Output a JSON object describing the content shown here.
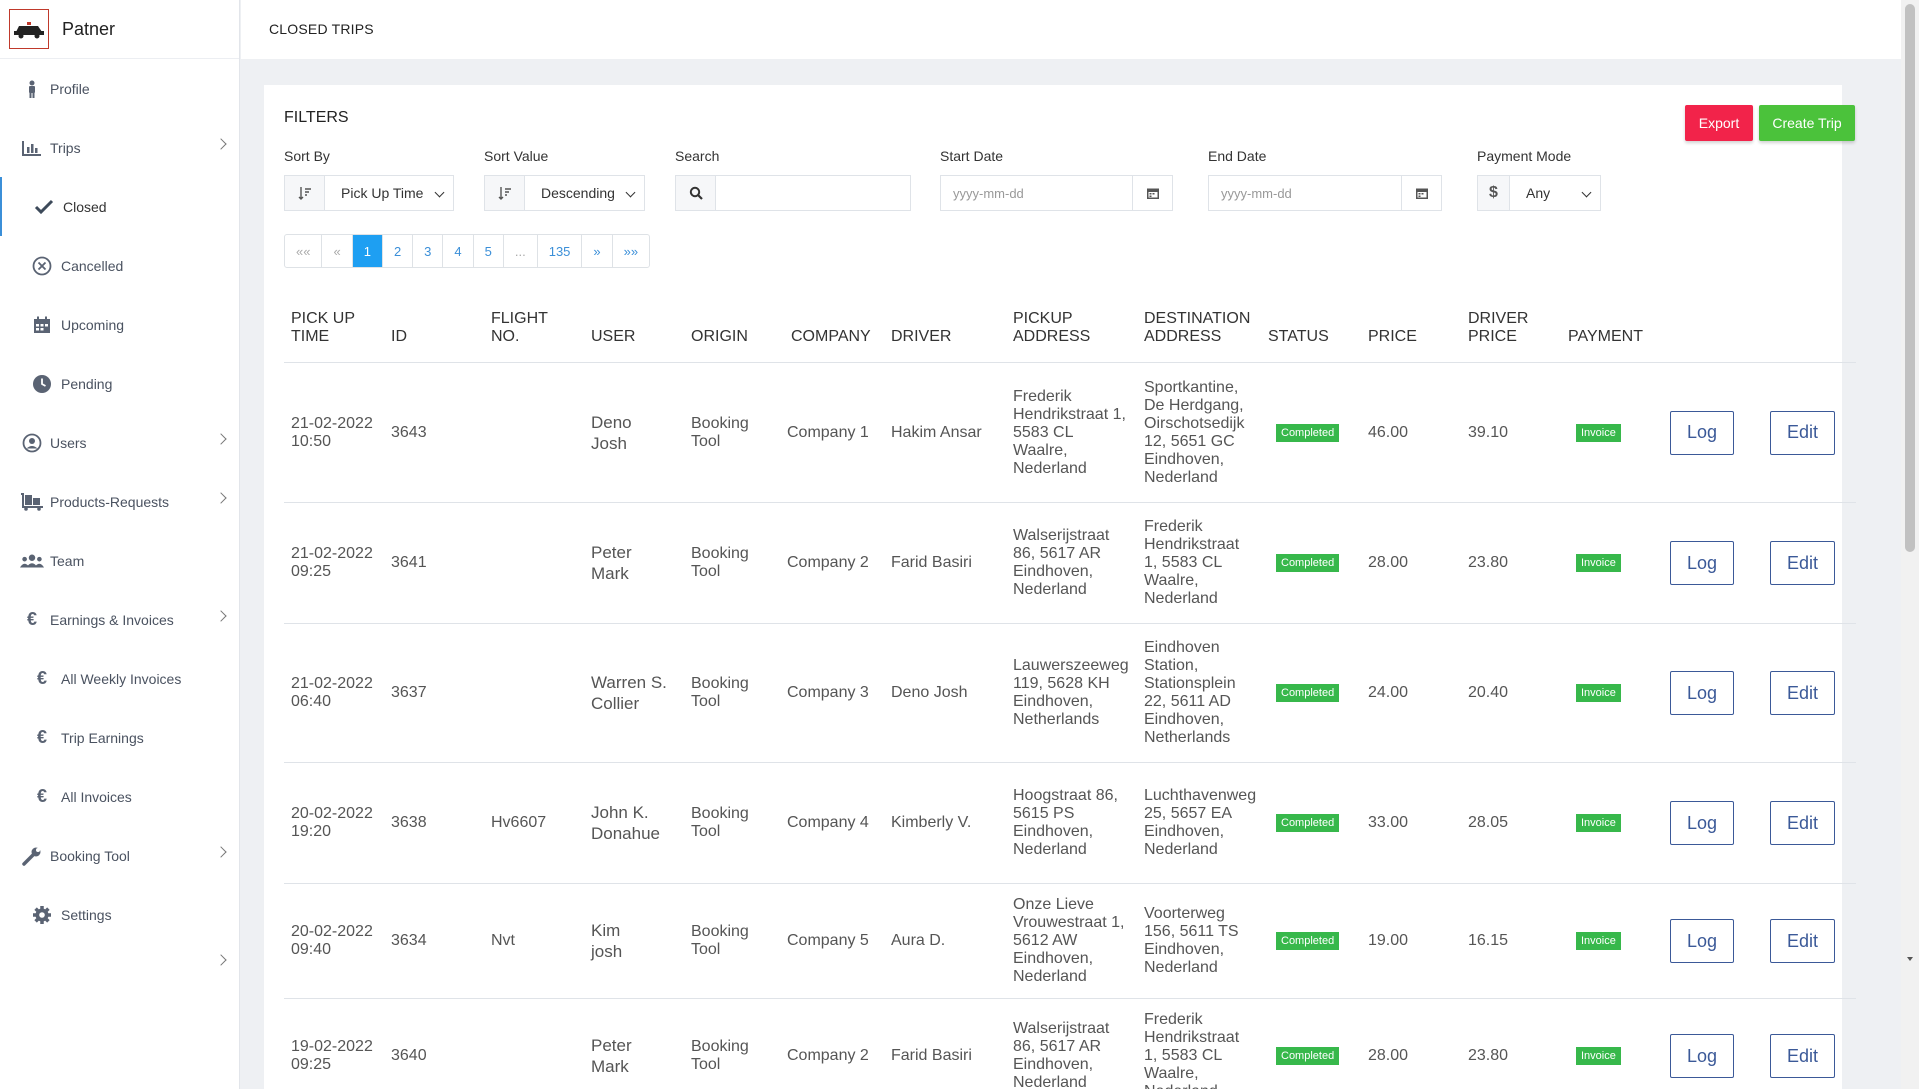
{
  "brand": {
    "name": "Patner"
  },
  "header": {
    "title": "CLOSED TRIPS"
  },
  "sidebar": {
    "items": [
      {
        "label": "Profile",
        "icon": "person-icon"
      },
      {
        "label": "Trips",
        "icon": "bar-chart-icon"
      },
      {
        "label": "Closed",
        "icon": "check-icon"
      },
      {
        "label": "Cancelled",
        "icon": "x-circle-icon"
      },
      {
        "label": "Upcoming",
        "icon": "calendar-icon"
      },
      {
        "label": "Pending",
        "icon": "clock-icon"
      },
      {
        "label": "Users",
        "icon": "user-circle-icon"
      },
      {
        "label": "Products-Requests",
        "icon": "dolly-icon"
      },
      {
        "label": "Team",
        "icon": "users-icon"
      },
      {
        "label": "Earnings & Invoices",
        "icon": "euro-icon"
      },
      {
        "label": "All Weekly Invoices",
        "icon": "euro-icon"
      },
      {
        "label": "Trip Earnings",
        "icon": "euro-icon"
      },
      {
        "label": "All Invoices",
        "icon": "euro-icon"
      },
      {
        "label": "Booking Tool",
        "icon": "wrench-icon"
      },
      {
        "label": "Settings",
        "icon": "gear-icon"
      }
    ]
  },
  "filters": {
    "title": "FILTERS",
    "export_label": "Export",
    "create_label": "Create Trip",
    "sort_by_label": "Sort By",
    "sort_by_value": "Pick Up Time",
    "sort_value_label": "Sort Value",
    "sort_value_value": "Descending",
    "search_label": "Search",
    "search_value": "",
    "start_date_label": "Start Date",
    "start_date_placeholder": "yyyy-mm-dd",
    "end_date_label": "End Date",
    "end_date_placeholder": "yyyy-mm-dd",
    "payment_mode_label": "Payment Mode",
    "payment_mode_value": "Any",
    "currency_symbol": "$"
  },
  "pagination": [
    "«« ",
    "«",
    "1",
    "2",
    "3",
    "4",
    "5",
    "...",
    "135",
    "»",
    "»»"
  ],
  "table": {
    "headers": {
      "pickup_time": [
        "PICK UP",
        "TIME"
      ],
      "id": "ID",
      "flight": [
        "FLIGHT",
        "NO."
      ],
      "user": "USER",
      "origin": "ORIGIN",
      "company": "COMPANY",
      "driver": "DRIVER",
      "pickup_address": [
        "PICKUP",
        "ADDRESS"
      ],
      "destination_address": [
        "DESTINATION",
        "ADDRESS"
      ],
      "status": "STATUS",
      "price": "PRICE",
      "driver_price": [
        "DRIVER",
        "PRICE"
      ],
      "payment": "PAYMENT"
    },
    "log_label": "Log",
    "edit_label": "Edit",
    "rows": [
      {
        "time": [
          "21-02-2022",
          "10:50"
        ],
        "id": "3643",
        "flight": "",
        "user": [
          "Deno",
          "Josh"
        ],
        "origin": [
          "Booking",
          "Tool"
        ],
        "company": "Company 1",
        "driver": "Hakim Ansar",
        "pickup": [
          "Frederik",
          "Hendrikstraat 1,",
          "5583 CL",
          "Waalre,",
          "Nederland"
        ],
        "destination": [
          "Sportkantine,",
          "De Herdgang,",
          "Oirschotsedijk",
          "12, 5651 GC",
          "Eindhoven,",
          "Nederland"
        ],
        "status": "Completed",
        "price": "46.00",
        "driver_price": "39.10",
        "payment": "Invoice"
      },
      {
        "time": [
          "21-02-2022",
          "09:25"
        ],
        "id": "3641",
        "flight": "",
        "user": [
          "Peter",
          "Mark"
        ],
        "origin": [
          "Booking",
          "Tool"
        ],
        "company": "Company 2",
        "driver": "Farid Basiri",
        "pickup": [
          "Walserijstraat",
          "86, 5617 AR",
          "Eindhoven,",
          "Nederland"
        ],
        "destination": [
          "Frederik",
          "Hendrikstraat",
          "1, 5583 CL",
          "Waalre,",
          "Nederland"
        ],
        "status": "Completed",
        "price": "28.00",
        "driver_price": "23.80",
        "payment": "Invoice"
      },
      {
        "time": [
          "21-02-2022",
          "06:40"
        ],
        "id": "3637",
        "flight": "",
        "user": [
          "Warren S.",
          "Collier"
        ],
        "origin": [
          "Booking",
          "Tool"
        ],
        "company": "Company 3",
        "driver": "Deno Josh",
        "pickup": [
          "Lauwerszeeweg",
          "119, 5628 KH",
          "Eindhoven,",
          "Netherlands"
        ],
        "destination": [
          "Eindhoven",
          "Station,",
          "Stationsplein",
          "22, 5611 AD",
          "Eindhoven,",
          "Netherlands"
        ],
        "status": "Completed",
        "price": "24.00",
        "driver_price": "20.40",
        "payment": "Invoice"
      },
      {
        "time": [
          "20-02-2022",
          "19:20"
        ],
        "id": "3638",
        "flight": "Hv6607",
        "user": [
          "John K.",
          "Donahue"
        ],
        "origin": [
          "Booking",
          "Tool"
        ],
        "company": "Company 4",
        "driver": "Kimberly V.",
        "pickup": [
          "Hoogstraat 86,",
          "5615 PS",
          "Eindhoven,",
          "Nederland"
        ],
        "destination": [
          "Luchthavenweg",
          "25, 5657 EA",
          "Eindhoven,",
          "Nederland"
        ],
        "status": "Completed",
        "price": "33.00",
        "driver_price": "28.05",
        "payment": "Invoice"
      },
      {
        "time": [
          "20-02-2022",
          "09:40"
        ],
        "id": "3634",
        "flight": "Nvt",
        "user": [
          "Kim",
          "josh"
        ],
        "origin": [
          "Booking",
          "Tool"
        ],
        "company": "Company 5",
        "driver": "Aura D.",
        "pickup": [
          "Onze Lieve",
          "Vrouwestraat 1,",
          "5612 AW",
          "Eindhoven,",
          "Nederland"
        ],
        "destination": [
          "Voorterweg",
          "156, 5611 TS",
          "Eindhoven,",
          "Nederland"
        ],
        "status": "Completed",
        "price": "19.00",
        "driver_price": "16.15",
        "payment": "Invoice"
      },
      {
        "time": [
          "19-02-2022",
          "09:25"
        ],
        "id": "3640",
        "flight": "",
        "user": [
          "Peter",
          "Mark"
        ],
        "origin": [
          "Booking",
          "Tool"
        ],
        "company": "Company 2",
        "driver": "Farid Basiri",
        "pickup": [
          "Walserijstraat",
          "86, 5617 AR",
          "Eindhoven,",
          "Nederland"
        ],
        "destination": [
          "Frederik",
          "Hendrikstraat",
          "1, 5583 CL",
          "Waalre,",
          "Nederland"
        ],
        "status": "Completed",
        "price": "28.00",
        "driver_price": "23.80",
        "payment": "Invoice"
      }
    ]
  }
}
